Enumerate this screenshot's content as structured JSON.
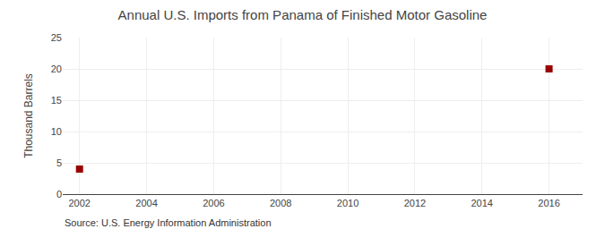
{
  "chart_data": {
    "type": "scatter",
    "title": "Annual U.S. Imports from Panama of Finished Motor Gasoline",
    "ylabel": "Thousand Barrels",
    "annotations": [
      "Source: U.S. Energy Information Administration"
    ],
    "x": [
      2002,
      2016
    ],
    "values": [
      4,
      20
    ],
    "color": "#990000",
    "marker": "square",
    "xlim": [
      2001.5,
      2017
    ],
    "ylim": [
      0,
      25
    ],
    "xticks": [
      2002,
      2004,
      2006,
      2008,
      2010,
      2012,
      2014,
      2016
    ],
    "yticks": [
      0,
      5,
      10,
      15,
      20,
      25
    ],
    "grid": true
  }
}
